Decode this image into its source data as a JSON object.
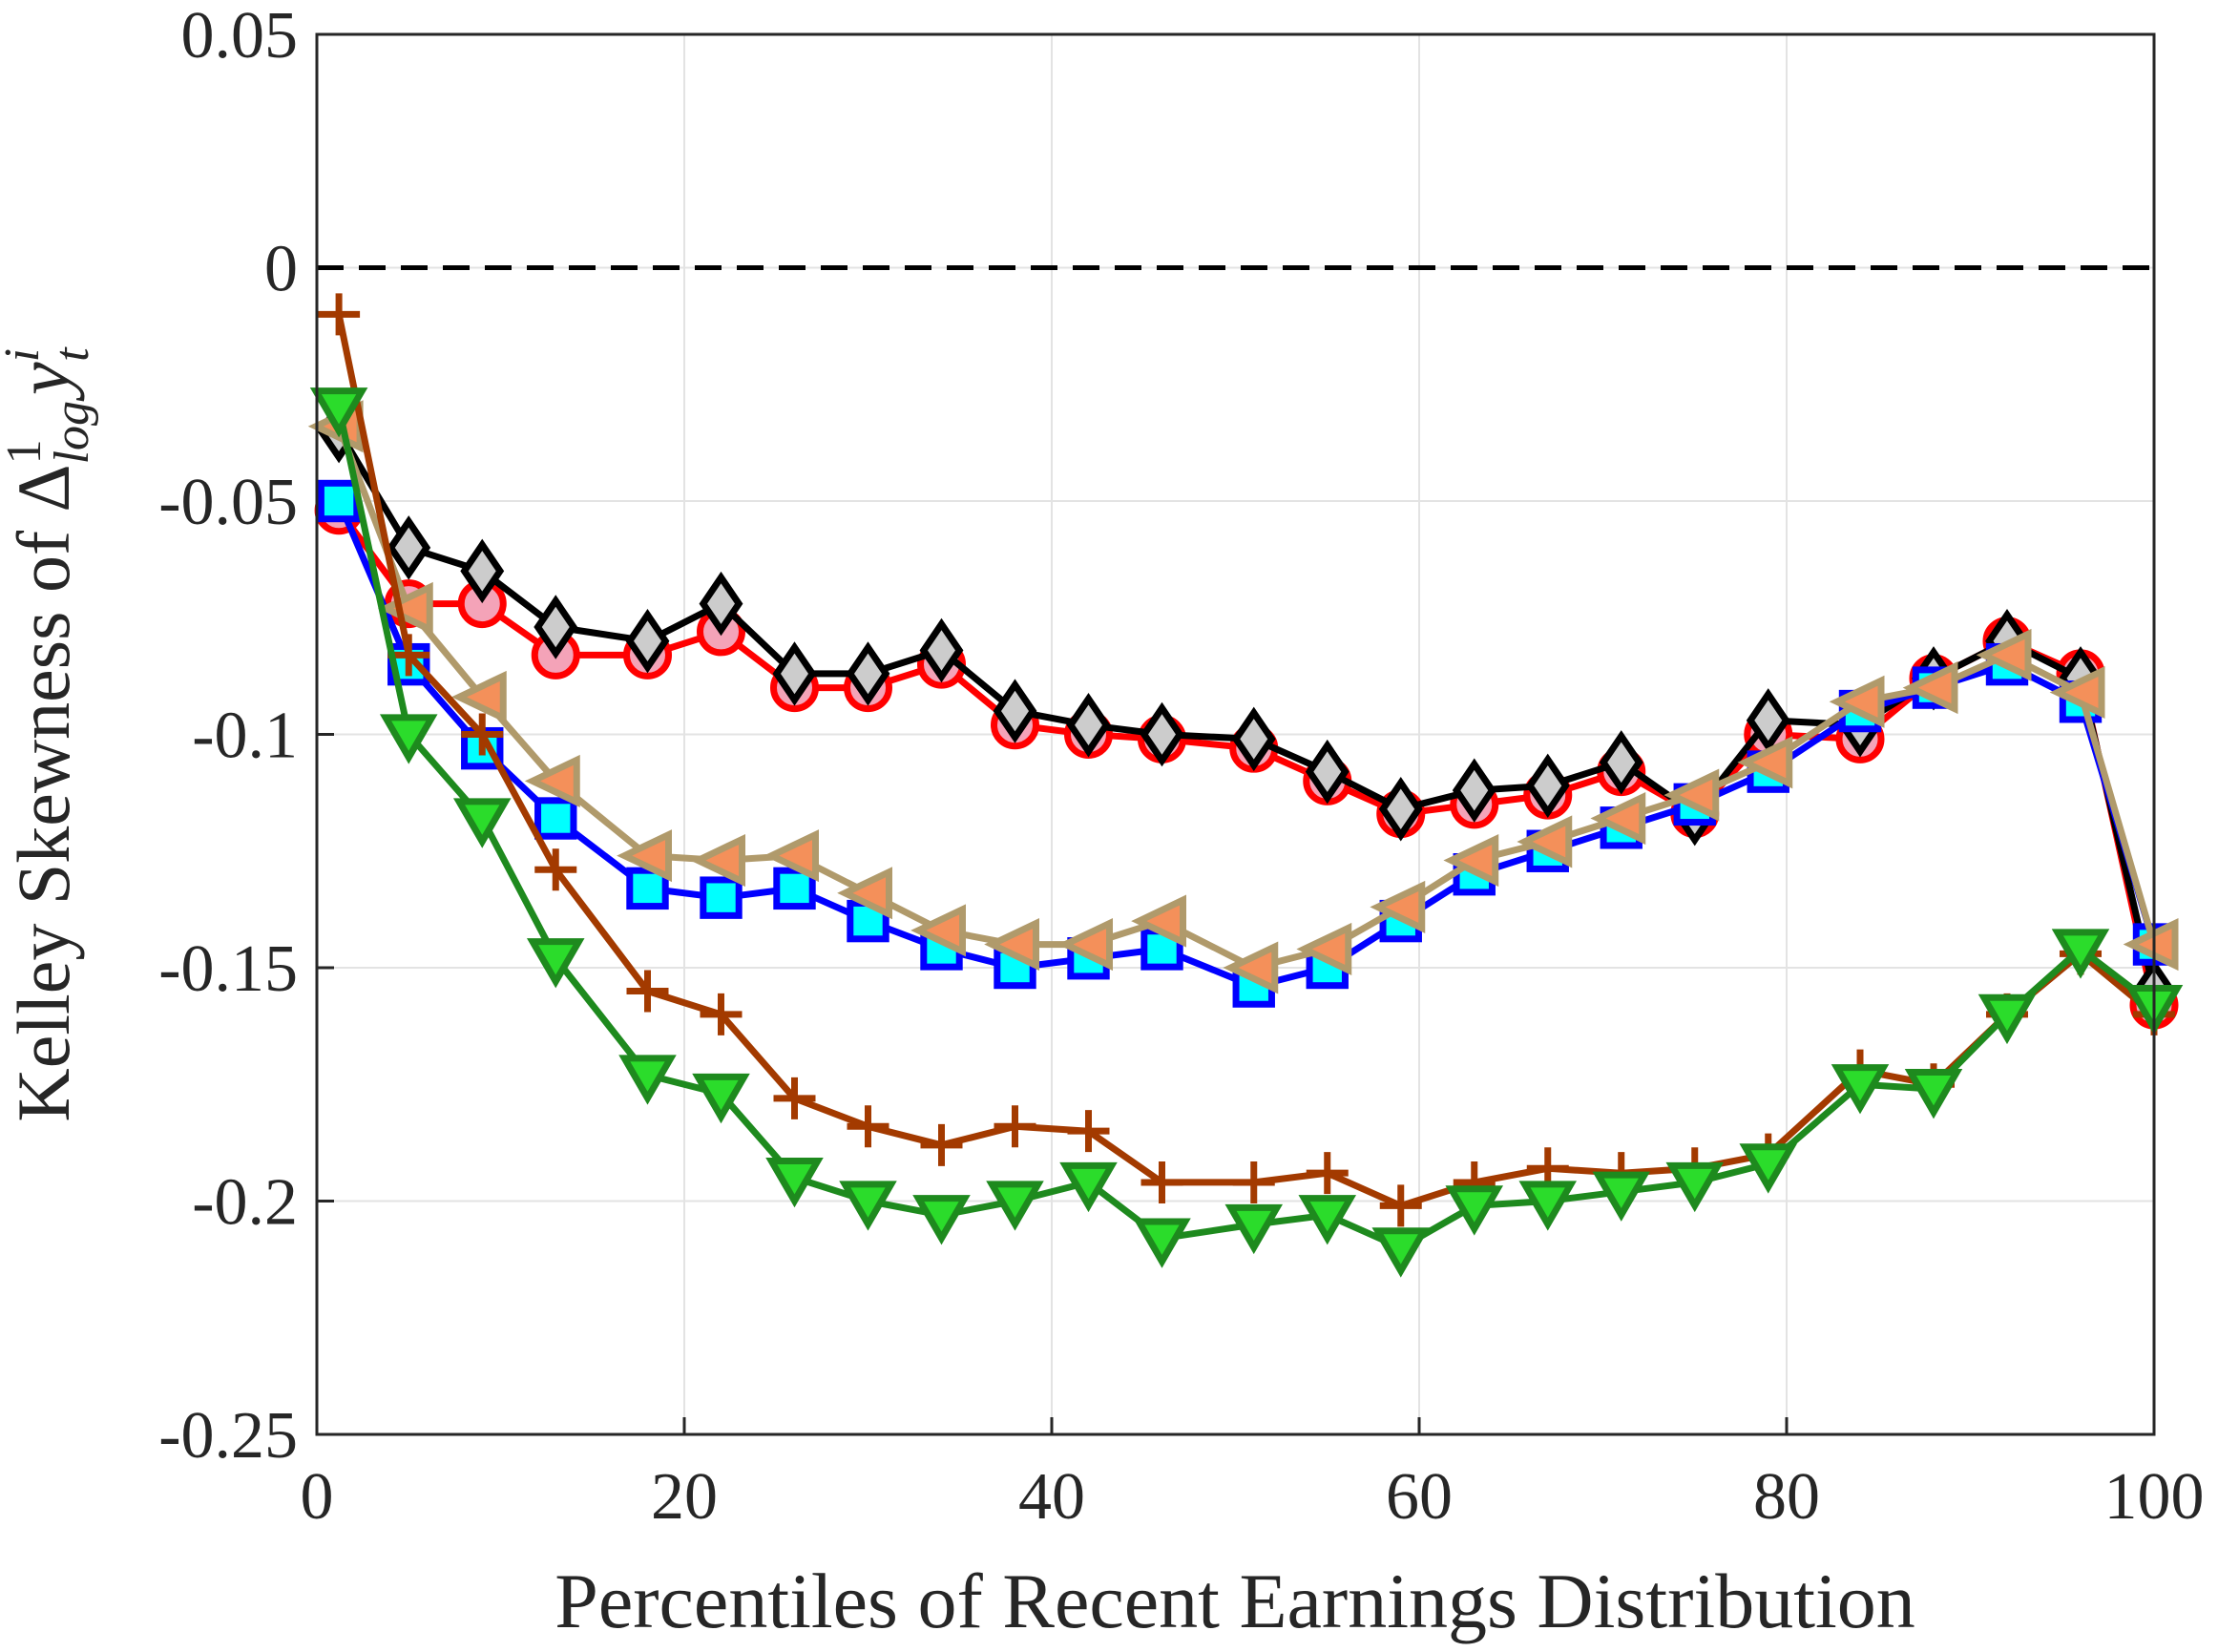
{
  "chart_data": {
    "type": "line",
    "title": "",
    "xlabel": "Percentiles of Recent Earnings Distribution",
    "ylabel": {
      "main": "Kelley Skewness of ",
      "symbol": "Δ",
      "sup": "1",
      "sub": "log",
      "var": "y",
      "var_sup": "i",
      "var_sub": "t"
    },
    "xlim": [
      0,
      100
    ],
    "ylim": [
      -0.25,
      0.05
    ],
    "xticks": [
      0,
      20,
      40,
      60,
      80,
      100
    ],
    "xtick_labels": [
      "0",
      "20",
      "40",
      "60",
      "80",
      "100"
    ],
    "yticks": [
      0.05,
      0,
      -0.05,
      -0.1,
      -0.15,
      -0.2,
      -0.25
    ],
    "ytick_labels": [
      "0.05",
      "0",
      "-0.05",
      "-0.1",
      "-0.15",
      "-0.2",
      "-0.25"
    ],
    "grid": true,
    "reference_line": {
      "y": 0,
      "style": "dashed",
      "color": "#000000"
    },
    "x": [
      1.2,
      5,
      9,
      13,
      18,
      22,
      26,
      30,
      34,
      38,
      42,
      46,
      51,
      55,
      59,
      63,
      67,
      71,
      75,
      79,
      84,
      88,
      92,
      96,
      100
    ],
    "series": [
      {
        "name": "circles",
        "marker": "circle",
        "line": "#ff0000",
        "edge": "#ff0000",
        "fill": "#f4a3b8",
        "values": [
          -0.052,
          -0.072,
          -0.072,
          -0.083,
          -0.083,
          -0.078,
          -0.09,
          -0.09,
          -0.085,
          -0.098,
          -0.1,
          -0.101,
          -0.103,
          -0.11,
          -0.117,
          -0.115,
          -0.113,
          -0.108,
          -0.117,
          -0.1,
          -0.101,
          -0.088,
          -0.08,
          -0.087,
          -0.158
        ]
      },
      {
        "name": "diamonds",
        "marker": "diamond",
        "line": "#000000",
        "edge": "#000000",
        "fill": "#cccccc",
        "values": [
          -0.035,
          -0.06,
          -0.065,
          -0.077,
          -0.08,
          -0.072,
          -0.087,
          -0.087,
          -0.082,
          -0.095,
          -0.098,
          -0.1,
          -0.101,
          -0.108,
          -0.116,
          -0.112,
          -0.111,
          -0.106,
          -0.117,
          -0.097,
          -0.098,
          -0.088,
          -0.08,
          -0.088,
          -0.155
        ]
      },
      {
        "name": "squares",
        "marker": "square",
        "line": "#0000ff",
        "edge": "#0000ff",
        "fill": "#00ffff",
        "values": [
          -0.05,
          -0.085,
          -0.103,
          -0.118,
          -0.133,
          -0.135,
          -0.133,
          -0.14,
          -0.146,
          -0.15,
          -0.148,
          -0.146,
          -0.154,
          -0.15,
          -0.14,
          -0.13,
          -0.125,
          -0.12,
          -0.115,
          -0.108,
          -0.095,
          -0.09,
          -0.085,
          -0.093,
          -0.145
        ]
      },
      {
        "name": "left-triangles",
        "marker": "triangle-left",
        "line": "#b09a6b",
        "edge": "#b09a6b",
        "fill": "#f4905a",
        "values": [
          -0.034,
          -0.073,
          -0.092,
          -0.11,
          -0.126,
          -0.127,
          -0.126,
          -0.134,
          -0.142,
          -0.145,
          -0.145,
          -0.14,
          -0.15,
          -0.146,
          -0.137,
          -0.127,
          -0.123,
          -0.118,
          -0.113,
          -0.106,
          -0.093,
          -0.09,
          -0.083,
          -0.091,
          -0.145
        ]
      },
      {
        "name": "plus",
        "marker": "plus",
        "line": "#a33a00",
        "edge": "#a33a00",
        "fill": "none",
        "values": [
          -0.01,
          -0.083,
          -0.1,
          -0.129,
          -0.155,
          -0.16,
          -0.178,
          -0.184,
          -0.188,
          -0.184,
          -0.185,
          -0.196,
          -0.196,
          -0.194,
          -0.201,
          -0.196,
          -0.193,
          -0.194,
          -0.193,
          -0.19,
          -0.172,
          -0.175,
          -0.16,
          -0.147,
          -0.16
        ]
      },
      {
        "name": "down-triangles",
        "marker": "triangle-down",
        "line": "#1e8a1e",
        "edge": "#1e8a1e",
        "fill": "#2bdc2b",
        "values": [
          -0.03,
          -0.1,
          -0.118,
          -0.148,
          -0.173,
          -0.177,
          -0.195,
          -0.2,
          -0.203,
          -0.2,
          -0.196,
          -0.208,
          -0.205,
          -0.203,
          -0.21,
          -0.201,
          -0.2,
          -0.198,
          -0.196,
          -0.192,
          -0.175,
          -0.176,
          -0.16,
          -0.146,
          -0.158
        ]
      }
    ]
  }
}
